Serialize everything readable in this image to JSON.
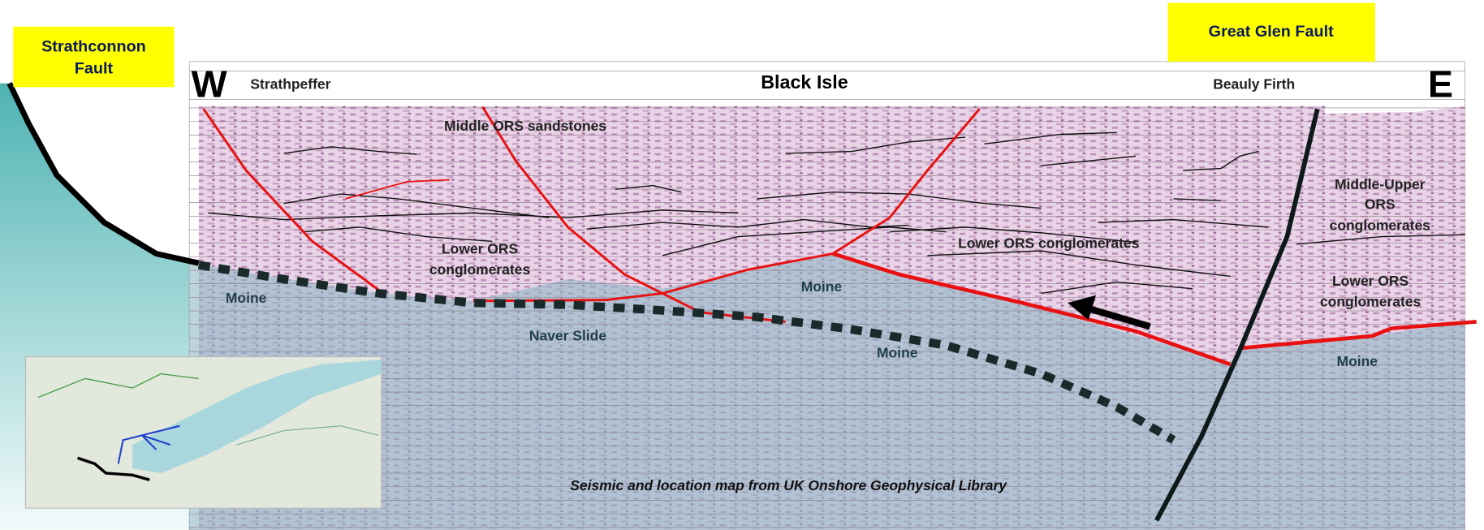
{
  "callouts": {
    "strathconnon_fault": [
      "Strathconnon",
      "Fault"
    ],
    "great_glen_fault": "Great Glen Fault"
  },
  "section": {
    "west": "W",
    "east": "E",
    "places": [
      "Strathpeffer",
      "Black Isle",
      "Beauly Firth"
    ],
    "units": {
      "middle_ors_sandstones": "Middle ORS sandstones",
      "lower_ors_west": [
        "Lower ORS",
        "conglomerates"
      ],
      "lower_ors_centre": "Lower ORS conglomerates",
      "middle_upper_ors": [
        "Middle-Upper",
        "ORS",
        "conglomerates"
      ],
      "lower_ors_east": [
        "Lower ORS",
        "conglomerates"
      ],
      "moine": [
        "Moine",
        "Moine",
        "Moine",
        "Moine"
      ],
      "naver_slide": "Naver Slide"
    },
    "credit": "Seismic and location map from UK Onshore Geophysical Library"
  }
}
